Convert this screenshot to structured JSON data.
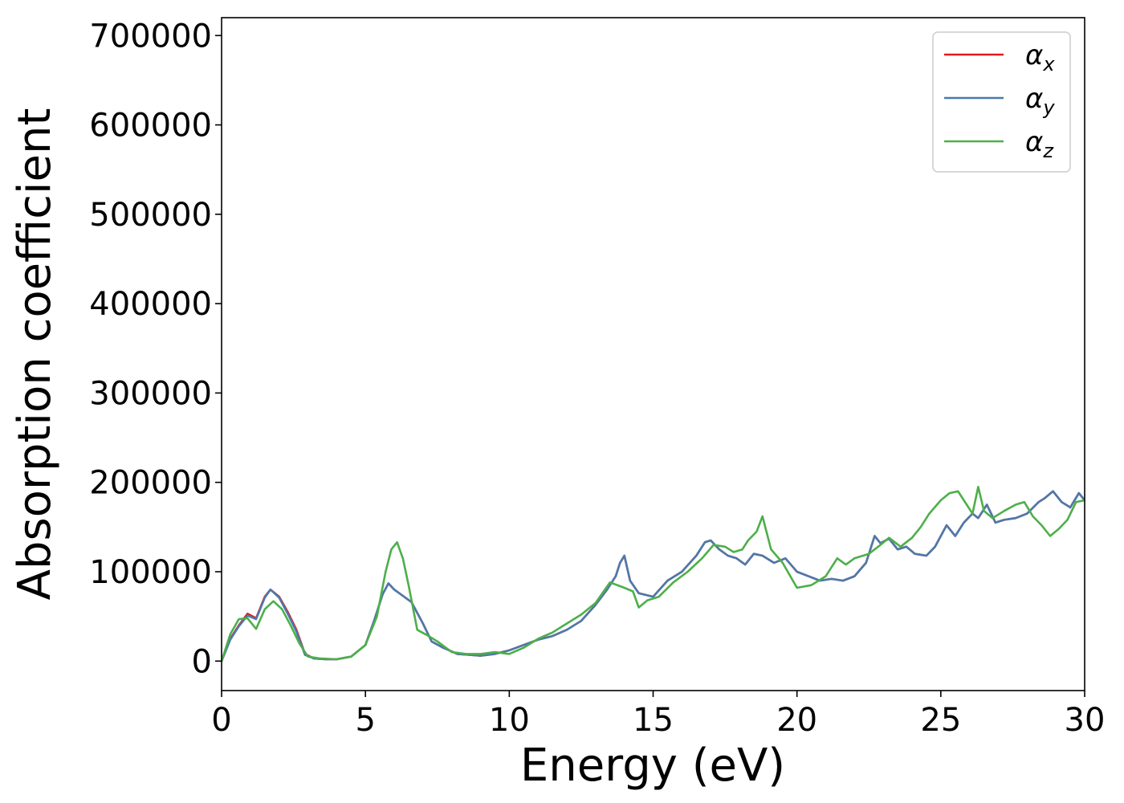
{
  "chart_data": {
    "type": "line",
    "xlabel": "Energy (eV)",
    "ylabel": "Absorption coefficient",
    "xlim": [
      0,
      30
    ],
    "ylim": [
      -33000,
      720000
    ],
    "xticks": [
      0,
      5,
      10,
      15,
      20,
      25,
      30
    ],
    "yticks": [
      0,
      100000,
      200000,
      300000,
      400000,
      500000,
      600000,
      700000
    ],
    "grid": false,
    "legend_position": "top-right",
    "series": [
      {
        "name": "α",
        "name_sub": "x",
        "color": "#e41a1c",
        "x": [
          0,
          0.3,
          0.6,
          0.9,
          1.2,
          1.5,
          1.7,
          2.0,
          2.3,
          2.6,
          2.9,
          3.2,
          3.6,
          4.0,
          4.5,
          5.0,
          5.3,
          5.6,
          5.8,
          6.0,
          6.3,
          6.6,
          7.0,
          7.3,
          7.7,
          8.2,
          8.6,
          9.0,
          9.5,
          10.0,
          10.5,
          11.0,
          11.5,
          12.0,
          12.5,
          13.0,
          13.4,
          13.7,
          13.85,
          14.0,
          14.2,
          14.5,
          15.0,
          15.5,
          16.0,
          16.5,
          16.8,
          17.0,
          17.3,
          17.6,
          17.9,
          18.2,
          18.5,
          18.8,
          19.2,
          19.6,
          20.0,
          20.4,
          20.8,
          21.2,
          21.6,
          22.0,
          22.4,
          22.7,
          22.9,
          23.2,
          23.5,
          23.8,
          24.1,
          24.5,
          24.8,
          25.2,
          25.5,
          25.8,
          26.1,
          26.3,
          26.6,
          26.9,
          27.2,
          27.6,
          28.0,
          28.4,
          28.6,
          28.9,
          29.2,
          29.5,
          29.8,
          30.0
        ],
        "y": [
          0,
          25000,
          40000,
          53000,
          48000,
          72000,
          80000,
          72000,
          55000,
          35000,
          8000,
          3000,
          2000,
          2000,
          5000,
          18000,
          45000,
          75000,
          87000,
          80000,
          73000,
          66000,
          42000,
          22000,
          15000,
          8000,
          7000,
          6000,
          8000,
          12000,
          18000,
          24000,
          28000,
          35000,
          45000,
          63000,
          80000,
          95000,
          110000,
          118000,
          90000,
          76000,
          72000,
          90000,
          100000,
          118000,
          133000,
          135000,
          125000,
          118000,
          115000,
          108000,
          120000,
          118000,
          110000,
          115000,
          100000,
          95000,
          90000,
          92000,
          90000,
          95000,
          110000,
          140000,
          132000,
          137000,
          125000,
          128000,
          120000,
          118000,
          128000,
          152000,
          140000,
          155000,
          165000,
          160000,
          175000,
          155000,
          158000,
          160000,
          165000,
          178000,
          182000,
          190000,
          178000,
          172000,
          188000,
          180000
        ]
      },
      {
        "name": "α",
        "name_sub": "y",
        "color": "#4a7aac",
        "x": [
          0,
          0.3,
          0.6,
          0.9,
          1.2,
          1.5,
          1.7,
          2.0,
          2.3,
          2.6,
          2.9,
          3.2,
          3.6,
          4.0,
          4.5,
          5.0,
          5.3,
          5.6,
          5.8,
          6.0,
          6.3,
          6.6,
          7.0,
          7.3,
          7.7,
          8.2,
          8.6,
          9.0,
          9.5,
          10.0,
          10.5,
          11.0,
          11.5,
          12.0,
          12.5,
          13.0,
          13.4,
          13.7,
          13.85,
          14.0,
          14.2,
          14.5,
          15.0,
          15.5,
          16.0,
          16.5,
          16.8,
          17.0,
          17.3,
          17.6,
          17.9,
          18.2,
          18.5,
          18.8,
          19.2,
          19.6,
          20.0,
          20.4,
          20.8,
          21.2,
          21.6,
          22.0,
          22.4,
          22.7,
          22.9,
          23.2,
          23.5,
          23.8,
          24.1,
          24.5,
          24.8,
          25.2,
          25.5,
          25.8,
          26.1,
          26.3,
          26.6,
          26.9,
          27.2,
          27.6,
          28.0,
          28.4,
          28.6,
          28.9,
          29.2,
          29.5,
          29.8,
          30.0
        ],
        "y": [
          0,
          24000,
          39000,
          51000,
          47000,
          71000,
          80000,
          71000,
          53000,
          33000,
          7000,
          3000,
          2000,
          2000,
          5000,
          18000,
          45000,
          75000,
          87000,
          80000,
          73000,
          66000,
          42000,
          22000,
          15000,
          8000,
          7000,
          6000,
          8000,
          12000,
          18000,
          24000,
          28000,
          35000,
          45000,
          63000,
          80000,
          95000,
          110000,
          118000,
          90000,
          76000,
          72000,
          90000,
          100000,
          118000,
          133000,
          135000,
          125000,
          118000,
          115000,
          108000,
          120000,
          118000,
          110000,
          115000,
          100000,
          95000,
          90000,
          92000,
          90000,
          95000,
          110000,
          140000,
          132000,
          137000,
          125000,
          128000,
          120000,
          118000,
          128000,
          152000,
          140000,
          155000,
          165000,
          160000,
          175000,
          155000,
          158000,
          160000,
          165000,
          178000,
          182000,
          190000,
          178000,
          172000,
          188000,
          180000
        ]
      },
      {
        "name": "α",
        "name_sub": "z",
        "color": "#4daf4a",
        "x": [
          0,
          0.3,
          0.6,
          0.9,
          1.2,
          1.5,
          1.8,
          2.1,
          2.4,
          2.7,
          3.0,
          3.4,
          4.0,
          4.5,
          5.0,
          5.4,
          5.7,
          5.9,
          6.1,
          6.3,
          6.5,
          6.8,
          7.2,
          7.5,
          8.0,
          8.5,
          9.0,
          9.5,
          10.0,
          10.5,
          11.0,
          11.5,
          12.0,
          12.5,
          13.0,
          13.5,
          14.0,
          14.3,
          14.5,
          14.8,
          15.2,
          15.7,
          16.2,
          16.7,
          17.1,
          17.5,
          17.8,
          18.1,
          18.3,
          18.6,
          18.8,
          19.1,
          19.5,
          20.0,
          20.5,
          21.0,
          21.4,
          21.7,
          22.0,
          22.5,
          22.9,
          23.2,
          23.6,
          24.0,
          24.3,
          24.6,
          25.0,
          25.3,
          25.6,
          25.9,
          26.1,
          26.3,
          26.5,
          26.8,
          27.2,
          27.6,
          27.9,
          28.2,
          28.5,
          28.8,
          29.1,
          29.4,
          29.7,
          30.0
        ],
        "y": [
          0,
          30000,
          47000,
          48000,
          36000,
          58000,
          67000,
          58000,
          40000,
          20000,
          5000,
          3000,
          2000,
          5000,
          18000,
          50000,
          100000,
          125000,
          133000,
          115000,
          85000,
          35000,
          28000,
          22000,
          10000,
          8000,
          8000,
          10000,
          8000,
          15000,
          25000,
          32000,
          42000,
          52000,
          65000,
          88000,
          82000,
          78000,
          60000,
          68000,
          72000,
          88000,
          100000,
          115000,
          130000,
          128000,
          122000,
          125000,
          135000,
          145000,
          162000,
          125000,
          110000,
          82000,
          85000,
          95000,
          115000,
          108000,
          115000,
          120000,
          130000,
          138000,
          128000,
          138000,
          150000,
          165000,
          180000,
          188000,
          190000,
          175000,
          165000,
          195000,
          168000,
          160000,
          168000,
          175000,
          178000,
          162000,
          152000,
          140000,
          148000,
          158000,
          178000,
          180000
        ]
      }
    ]
  }
}
